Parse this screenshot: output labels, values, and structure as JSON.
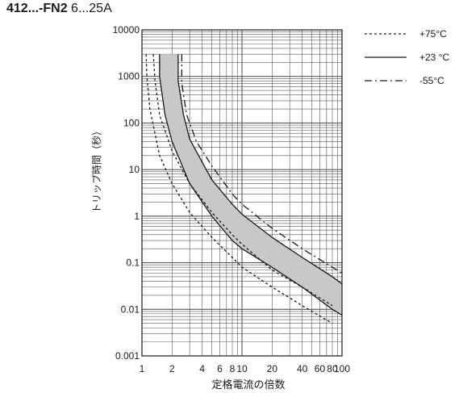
{
  "header": {
    "model": "412...-FN2",
    "rating": "6...25A"
  },
  "chart_data": {
    "type": "line",
    "xscale": "log",
    "yscale": "log",
    "xlim": [
      1,
      100
    ],
    "ylim": [
      0.001,
      10000
    ],
    "xlabel": "定格電流の倍数",
    "ylabel": "トリップ時間（秒）",
    "xticks": [
      1,
      2,
      4,
      6,
      8,
      10,
      20,
      40,
      60,
      80,
      100
    ],
    "xtick_labels": [
      "1",
      "2",
      "4",
      "6",
      "8",
      "10",
      "20",
      "40",
      "60",
      "80",
      "100"
    ],
    "yticks": [
      0.001,
      0.01,
      0.1,
      1,
      10,
      100,
      1000,
      10000
    ],
    "ytick_labels": [
      "0.001",
      "0.01",
      "0.1",
      "1",
      "10",
      "100",
      "1000",
      "10000"
    ],
    "grid": true,
    "legend_position": "top-right",
    "shaded_band": {
      "between": [
        "+23 °C lower",
        "+23 °C upper"
      ],
      "color": "#c8c8c8"
    },
    "series": [
      {
        "name": "+75°C",
        "style": "dotted",
        "x": [
          1.1,
          1.12,
          1.2,
          1.5,
          2,
          3,
          5,
          8,
          10,
          20,
          40,
          80
        ],
        "y": [
          3000,
          1000,
          200,
          20,
          5,
          1.2,
          0.35,
          0.13,
          0.08,
          0.03,
          0.012,
          0.005
        ]
      },
      {
        "name": "+75°C",
        "style": "dotted",
        "x": [
          1.3,
          1.35,
          1.5,
          2,
          3,
          5,
          8,
          10,
          20,
          40,
          80
        ],
        "y": [
          3000,
          800,
          150,
          25,
          5,
          1.2,
          0.4,
          0.25,
          0.07,
          0.03,
          0.012
        ]
      },
      {
        "name": "+23 °C",
        "style": "solid",
        "x": [
          1.5,
          1.5,
          1.7,
          2,
          3,
          5,
          8,
          10,
          20,
          40,
          80,
          100
        ],
        "y": [
          3000,
          1000,
          150,
          40,
          5,
          1,
          0.3,
          0.2,
          0.08,
          0.03,
          0.01,
          0.0075
        ]
      },
      {
        "name": "+23 °C",
        "style": "solid",
        "x": [
          2.3,
          2.3,
          2.6,
          3,
          5,
          8,
          10,
          20,
          40,
          80,
          100
        ],
        "y": [
          3000,
          800,
          150,
          45,
          6,
          1.8,
          1.1,
          0.35,
          0.13,
          0.05,
          0.035
        ]
      },
      {
        "name": "-55°C",
        "style": "dashdot",
        "x": [
          2.5,
          2.5,
          2.8,
          3.5,
          5,
          8,
          10,
          20,
          40,
          80,
          100
        ],
        "y": [
          3000,
          700,
          150,
          40,
          12,
          3,
          1.8,
          0.55,
          0.2,
          0.08,
          0.06
        ]
      }
    ],
    "legend": [
      {
        "label": "+75°C",
        "style": "dotted"
      },
      {
        "label": "+23 °C",
        "style": "solid"
      },
      {
        "label": "-55°C",
        "style": "dashdot"
      }
    ]
  }
}
